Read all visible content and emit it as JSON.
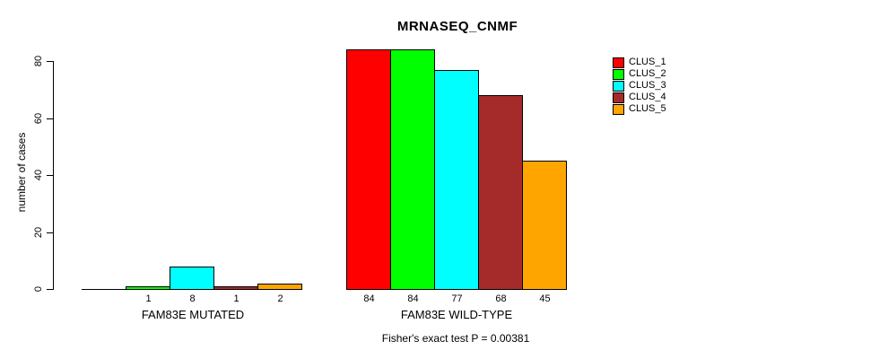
{
  "figure": {
    "title": "MRNASEQ_CNMF",
    "footer": "Fisher's exact test P = 0.00381"
  },
  "chart_data": {
    "type": "bar",
    "title": "MRNASEQ_CNMF",
    "xlabel": "",
    "ylabel": "number of cases",
    "groups": [
      "FAM83E MUTATED",
      "FAM83E WILD-TYPE"
    ],
    "series": [
      {
        "name": "CLUS_1",
        "color": "#FF0000",
        "values": [
          0,
          84
        ]
      },
      {
        "name": "CLUS_2",
        "color": "#00FF00",
        "values": [
          1,
          84
        ]
      },
      {
        "name": "CLUS_3",
        "color": "#00FFFF",
        "values": [
          8,
          77
        ]
      },
      {
        "name": "CLUS_4",
        "color": "#A52A2A",
        "values": [
          1,
          68
        ]
      },
      {
        "name": "CLUS_5",
        "color": "#FFA500",
        "values": [
          2,
          45
        ]
      }
    ],
    "bar_labels": [
      [
        "",
        "1",
        "8",
        "1",
        "2"
      ],
      [
        "84",
        "84",
        "77",
        "68",
        "45"
      ]
    ],
    "yticks": [
      0,
      20,
      40,
      60,
      80
    ],
    "ylim": [
      0,
      84
    ],
    "grid": false,
    "legend_position": "top-right",
    "legend": [
      "CLUS_1",
      "CLUS_2",
      "CLUS_3",
      "CLUS_4",
      "CLUS_5"
    ],
    "annotation": "Fisher's exact test P = 0.00381"
  }
}
